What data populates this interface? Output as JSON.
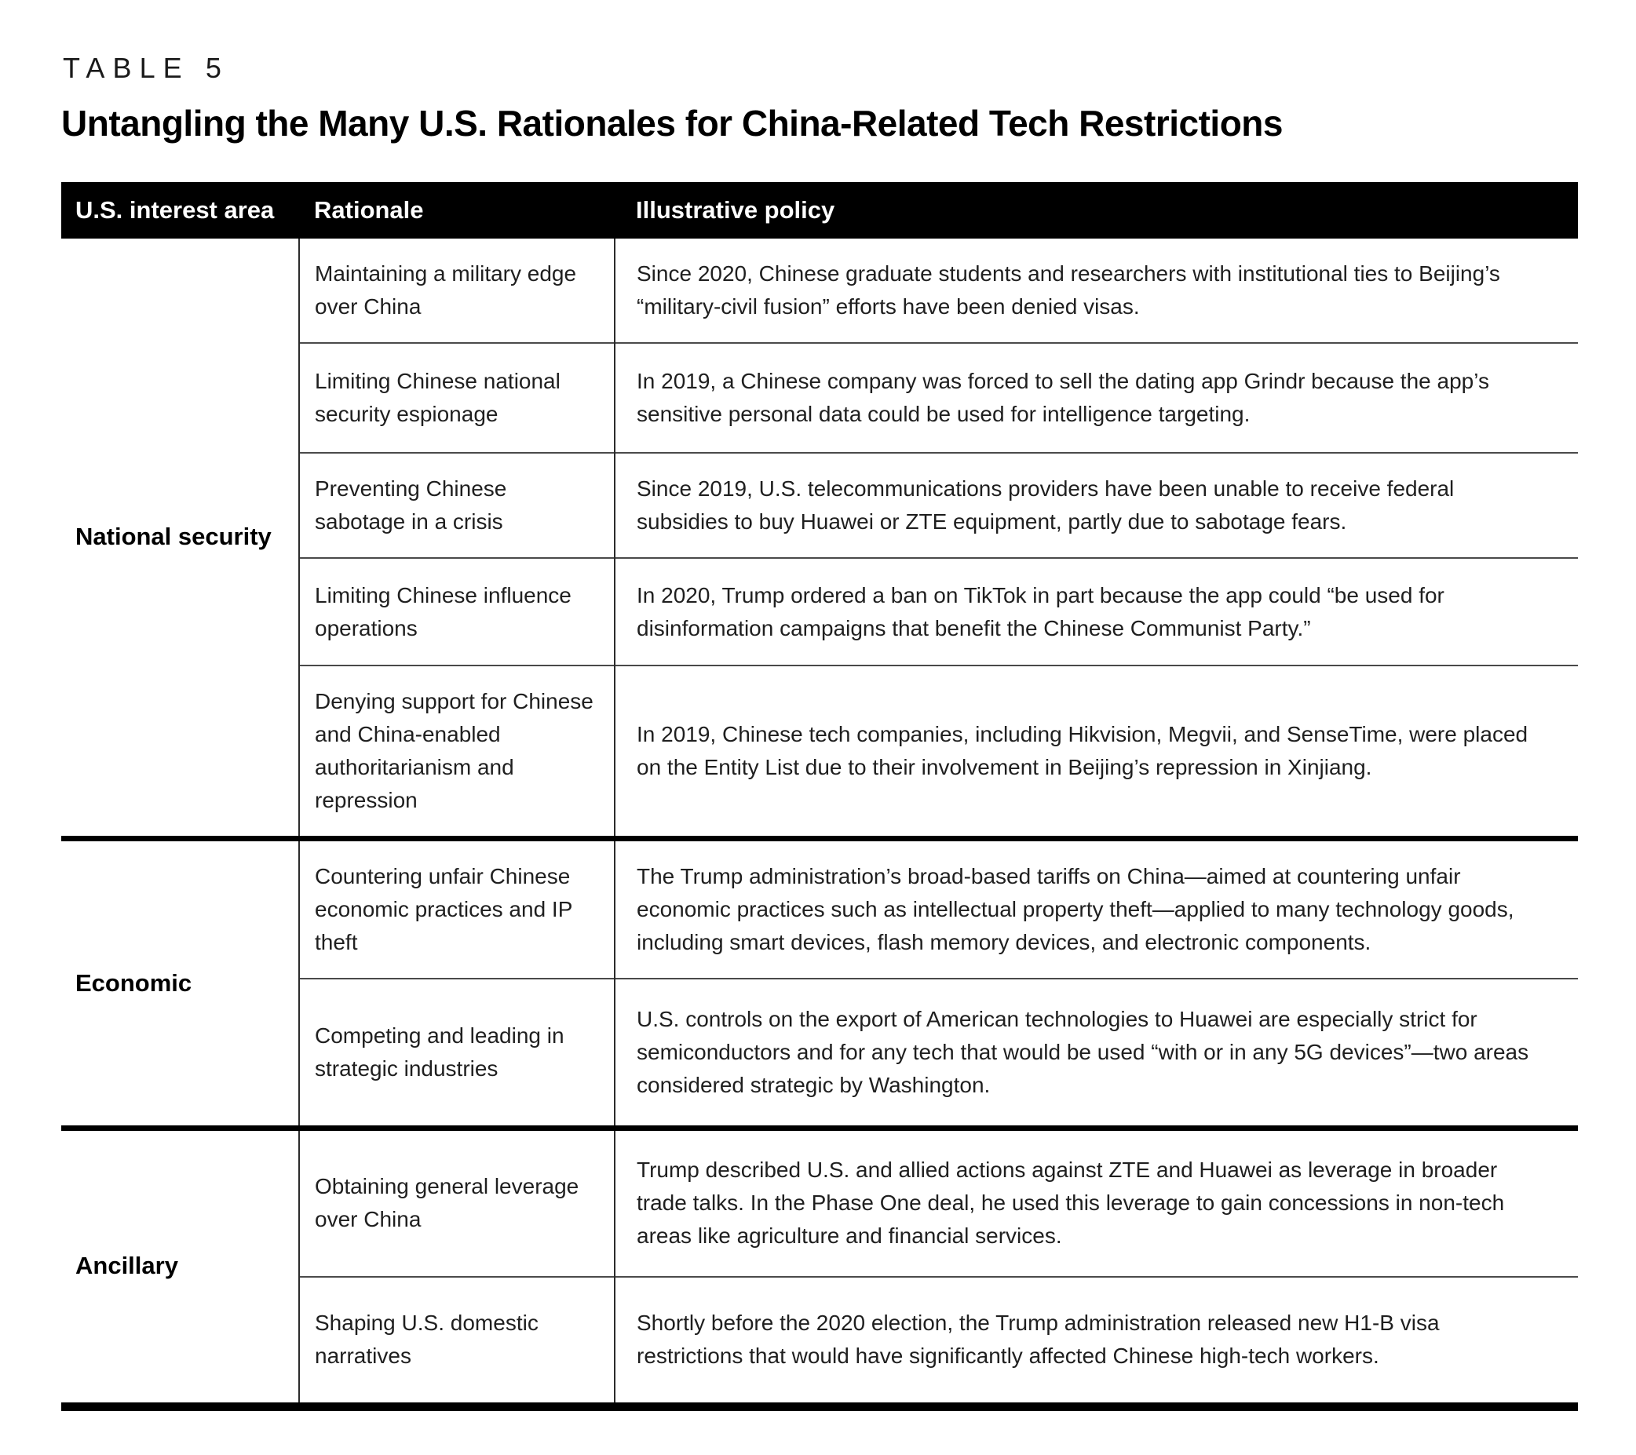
{
  "table_label": "TABLE 5",
  "title": "Untangling the Many U.S. Rationales for China-Related Tech Restrictions",
  "columns": [
    "U.S. interest area",
    "Rationale",
    "Illustrative policy"
  ],
  "groups": [
    {
      "area": "National security",
      "rows": [
        {
          "rationale": "Maintaining a military edge over China",
          "policy": "Since 2020, Chinese graduate students and researchers with institutional ties to Beijing’s “military-civil fusion” efforts have been denied visas."
        },
        {
          "rationale": "Limiting Chinese national security espionage",
          "policy": "In 2019, a Chinese company was forced to sell the dating app Grindr because the app’s sensitive personal data could be used for intelligence targeting."
        },
        {
          "rationale": "Preventing Chinese sabotage in a crisis",
          "policy": "Since 2019, U.S. telecommunications providers have been unable to receive federal subsidies to buy Huawei or ZTE equipment, partly due to sabotage fears."
        },
        {
          "rationale": "Limiting Chinese influence operations",
          "policy": "In 2020, Trump ordered a ban on TikTok in part because the app could “be used for disinformation campaigns that benefit the Chinese Communist Party.”"
        },
        {
          "rationale": "Denying support for Chinese and China-enabled authoritarianism and repression",
          "policy": "In 2019, Chinese tech companies, including Hikvision, Megvii, and SenseTime, were placed on the Entity List due to their involvement in Beijing’s repression in Xinjiang."
        }
      ]
    },
    {
      "area": "Economic",
      "rows": [
        {
          "rationale": "Countering unfair Chinese economic practices and IP theft",
          "policy": "The Trump administration’s broad-based tariffs on China—aimed at countering unfair economic practices such as intellectual property theft—applied to many technology goods, including smart devices, flash memory devices, and electronic components."
        },
        {
          "rationale": "Competing and leading in strategic industries",
          "policy": "U.S. controls on the export of American technologies to Huawei are especially strict for semiconductors and for any tech that would be used “with or in any 5G devices”—two areas considered strategic by Washington."
        }
      ]
    },
    {
      "area": "Ancillary",
      "rows": [
        {
          "rationale": "Obtaining general leverage over China",
          "policy": "Trump described U.S. and allied actions against ZTE and Huawei as leverage in broader trade talks. In the Phase One deal, he used this leverage to gain concessions in non-tech areas like agriculture and financial services."
        },
        {
          "rationale": "Shaping U.S. domestic narratives",
          "policy": "Shortly before the 2020 election, the Trump administration released new H1-B visa restrictions that would have significantly affected Chinese high-tech workers."
        }
      ]
    }
  ]
}
